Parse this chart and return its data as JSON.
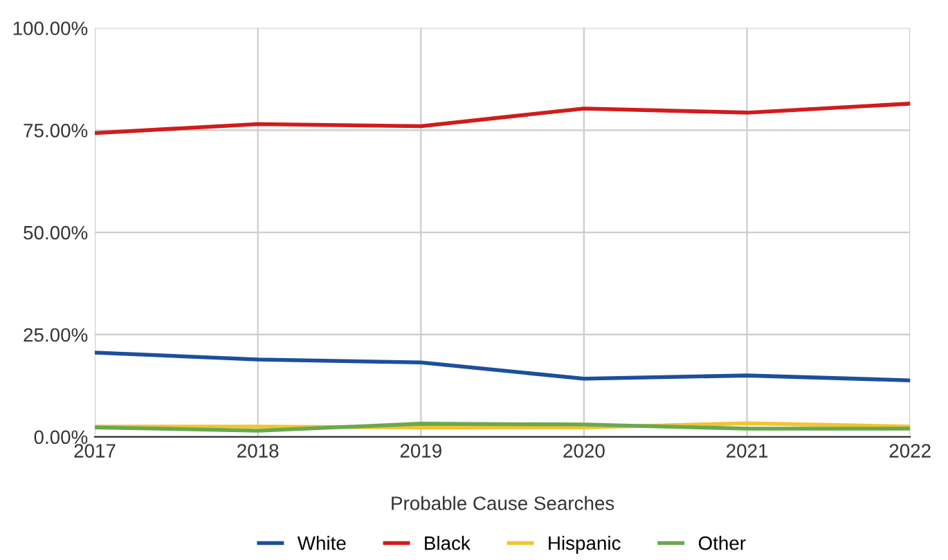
{
  "chart_data": {
    "type": "line",
    "xlabel": "Probable Cause Searches",
    "x": [
      2017,
      2018,
      2019,
      2020,
      2021,
      2022
    ],
    "xlim": [
      2017,
      2022
    ],
    "xticks": [
      2017,
      2018,
      2019,
      2020,
      2021,
      2022
    ],
    "ylim": [
      0,
      100
    ],
    "yticks": [
      {
        "value": 0,
        "label": "0.00%"
      },
      {
        "value": 25,
        "label": "25.00%"
      },
      {
        "value": 50,
        "label": "50.00%"
      },
      {
        "value": 75,
        "label": "75.00%"
      },
      {
        "value": 100,
        "label": "100.00%"
      }
    ],
    "grid": true,
    "legend": "bottom",
    "marker": "none",
    "line_style": "solid",
    "series": [
      {
        "name": "White",
        "color": "#1c4f9c",
        "values": [
          20.6,
          18.9,
          18.2,
          14.2,
          15.0,
          13.8
        ]
      },
      {
        "name": "Black",
        "color": "#d01c1c",
        "values": [
          74.3,
          76.5,
          76.0,
          80.3,
          79.3,
          81.5
        ]
      },
      {
        "name": "Hispanic",
        "color": "#f4c430",
        "values": [
          2.5,
          2.5,
          2.3,
          2.3,
          3.3,
          2.5
        ]
      },
      {
        "name": "Other",
        "color": "#6aa84f",
        "values": [
          2.3,
          1.5,
          3.2,
          3.0,
          2.0,
          2.0
        ]
      }
    ]
  }
}
